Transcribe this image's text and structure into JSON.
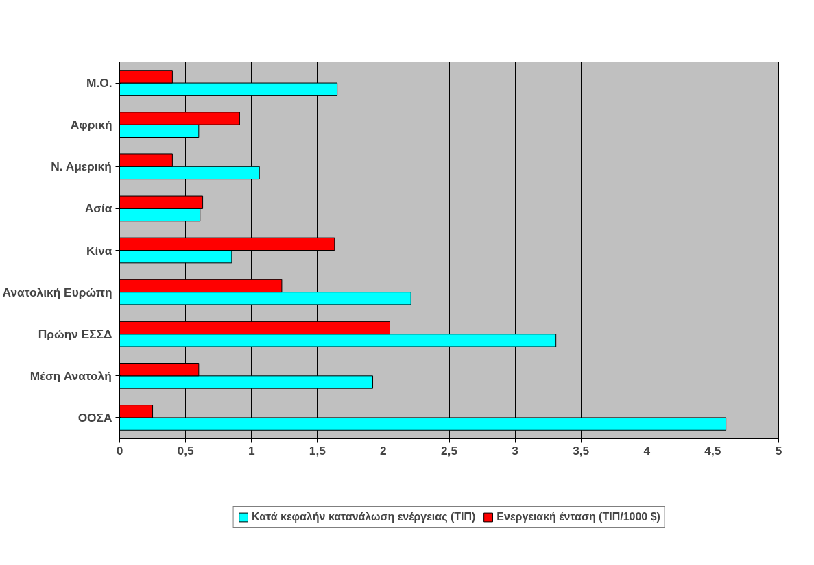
{
  "chart_data": {
    "type": "bar",
    "orientation": "horizontal",
    "categories": [
      "Μ.Ο.",
      "Αφρική",
      "Ν. Αμερική",
      "Ασία",
      "Κίνα",
      "Ανατολική Ευρώπη",
      "Πρώην ΕΣΣΔ",
      "Μέση Ανατολή",
      "ΟΟΣΑ"
    ],
    "series": [
      {
        "name": "Κατά κεφαλήν κατανάλωση ενέργειας (ΤΙΠ)",
        "color": "#00ffff",
        "values": [
          1.65,
          0.6,
          1.06,
          0.61,
          0.85,
          2.21,
          3.31,
          1.92,
          4.6
        ]
      },
      {
        "name": "Ενεργειακή ένταση (ΤΙΠ/1000 $)",
        "color": "#ff0000",
        "values": [
          0.4,
          0.91,
          0.4,
          0.63,
          1.63,
          1.23,
          2.05,
          0.6,
          0.25
        ]
      }
    ],
    "xlim": [
      0,
      5
    ],
    "xticks": [
      0,
      {
        "value": 0.5,
        "label": "0,5"
      },
      1,
      {
        "value": 1.5,
        "label": "1,5"
      },
      2,
      {
        "value": 2.5,
        "label": "2,5"
      },
      3,
      {
        "value": 3.5,
        "label": "3,5"
      },
      4,
      {
        "value": 4.5,
        "label": "4,5"
      },
      5
    ],
    "grid": "x",
    "legend": "bottom"
  }
}
